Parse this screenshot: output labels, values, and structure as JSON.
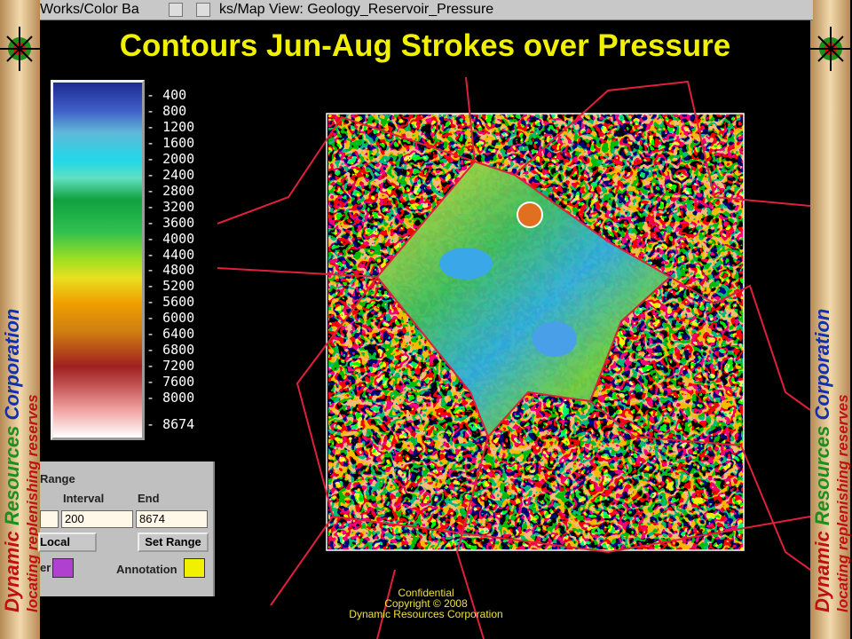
{
  "banner": {
    "company_words": [
      "Dynamic",
      "Resources",
      "Corporation"
    ],
    "tagline": "locating replenishing reserves"
  },
  "windows": {
    "color_bar_title": "Works/Color Ba",
    "map_title": "ks/Map View: Geology_Reservoir_Pressure"
  },
  "title": "Contours Jun-Aug Strokes over Pressure",
  "colorbar": {
    "labels": [
      "400",
      "800",
      "1200",
      "1600",
      "2000",
      "2400",
      "2800",
      "3200",
      "3600",
      "4000",
      "4400",
      "4800",
      "5200",
      "5600",
      "6000",
      "6400",
      "6800",
      "7200",
      "7600",
      "8000"
    ],
    "max_label": "8674"
  },
  "range_panel": {
    "heading": "Range",
    "interval_label": "Interval",
    "end_label": "End",
    "interval_value": "200",
    "end_value": "8674",
    "mode": "Local",
    "set_button": "Set Range",
    "color_label_left": "er",
    "annotation_label": "Annotation"
  },
  "footer": {
    "line1": "Confidential",
    "line2": "Copyright © 2008",
    "line3": "Dynamic Resources Corporation"
  }
}
